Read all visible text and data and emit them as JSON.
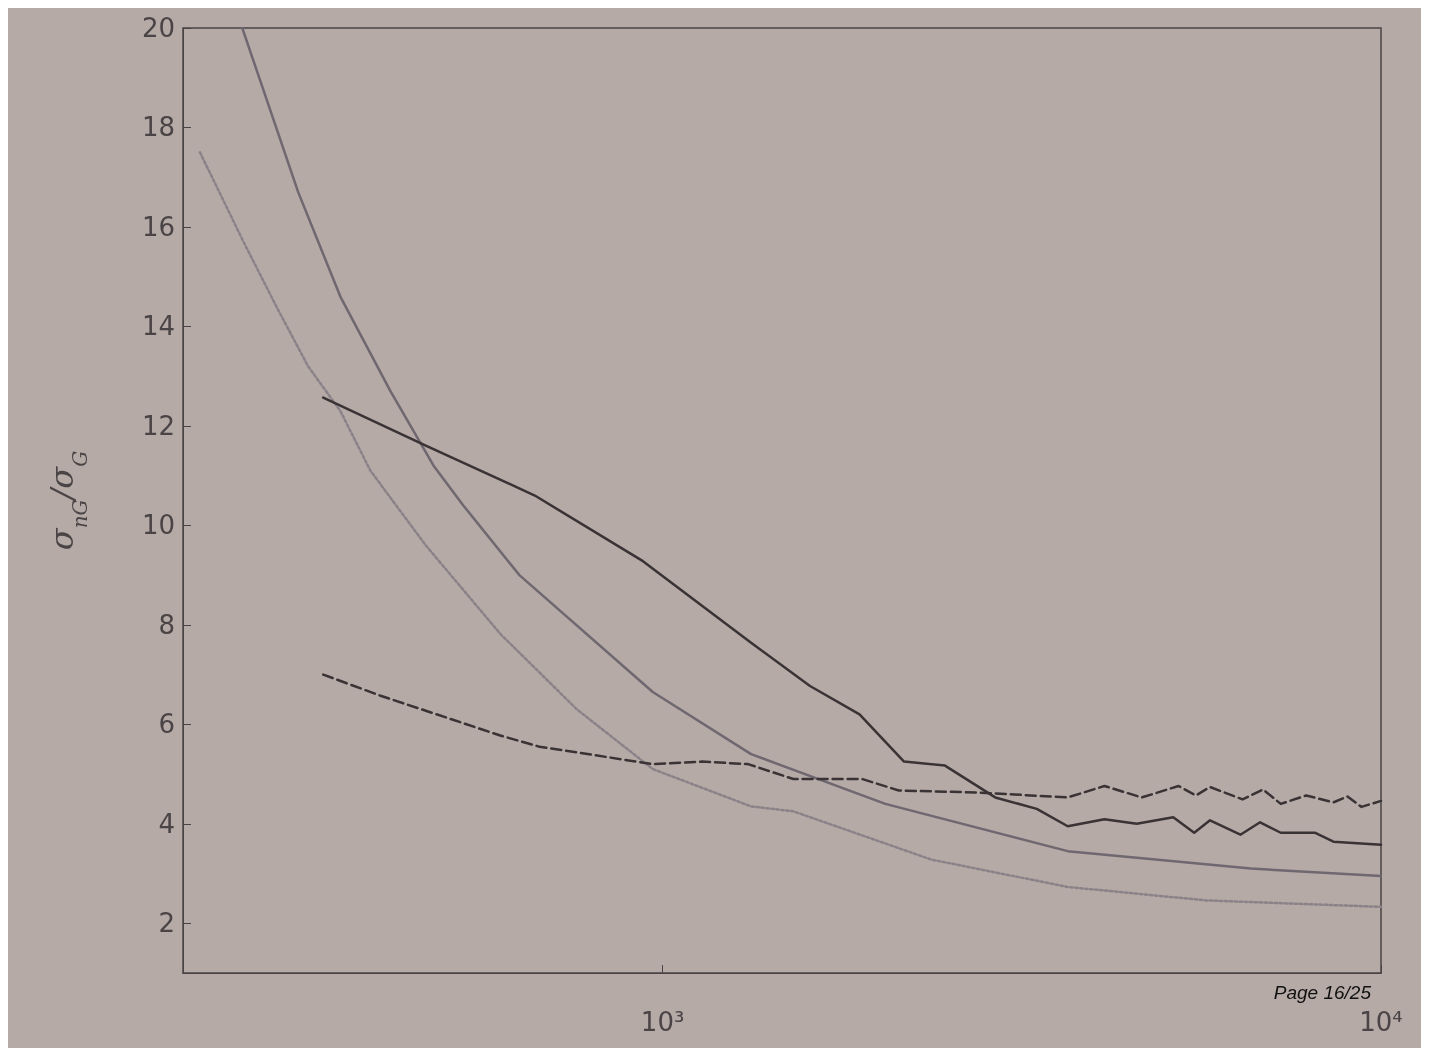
{
  "chart_data": {
    "type": "line",
    "ylabel": "σ$_{nG}$/σ$_{G}$",
    "log": "x",
    "xlim": [
      215,
      10000
    ],
    "xticks": [
      {
        "value": 1000,
        "label": "10³"
      },
      {
        "value": 10000,
        "label": "10⁴"
      }
    ],
    "ylim": [
      1,
      20
    ],
    "yticks": [
      2,
      4,
      6,
      8,
      10,
      12,
      14,
      16,
      18,
      20
    ],
    "grid": false,
    "marker": "none",
    "annotations": [
      "Page 16/25"
    ],
    "series": [
      {
        "color": "#6f6870",
        "line_style": "solid",
        "x": [
          260,
          311,
          356,
          418,
          480,
          528,
          632,
          969,
          1328,
          2042,
          3664,
          6590,
          10000
        ],
        "values": [
          20,
          16.7,
          14.6,
          12.7,
          11.2,
          10.4,
          9.0,
          6.65,
          5.4,
          4.4,
          3.45,
          3.1,
          2.95
        ]
      },
      {
        "color": "#8a8288",
        "line_style": "dotted",
        "x": [
          227,
          260,
          290,
          321,
          356,
          392,
          468,
          596,
          760,
          969,
          1328,
          1521,
          2367,
          3664,
          5701,
          10000
        ],
        "values": [
          17.5,
          15.75,
          14.4,
          13.2,
          12.3,
          11.1,
          9.6,
          7.8,
          6.3,
          5.1,
          4.35,
          4.25,
          3.28,
          2.73,
          2.46,
          2.33
        ]
      },
      {
        "color": "#3a3335",
        "line_style": "solid",
        "x": [
          337,
          469,
          664,
          939,
          1328,
          1604,
          1880,
          2168,
          2472,
          2904,
          3318,
          3664,
          4121,
          4571,
          5138,
          5495,
          5781,
          6372,
          6787,
          7252,
          8088,
          8586,
          10000
        ],
        "values": [
          12.57,
          11.6,
          10.6,
          9.28,
          7.64,
          6.77,
          6.2,
          5.25,
          5.17,
          4.53,
          4.3,
          3.95,
          4.09,
          4.0,
          4.13,
          3.82,
          4.07,
          3.78,
          4.03,
          3.82,
          3.82,
          3.64,
          3.58
        ]
      },
      {
        "color": "#3a3335",
        "line_style": "dashed",
        "x": [
          337,
          404,
          596,
          674,
          969,
          1135,
          1315,
          1521,
          1897,
          2132,
          2735,
          3664,
          4121,
          4645,
          5228,
          5525,
          5781,
          6417,
          6853,
          7252,
          7870,
          8586,
          8976,
          9393,
          10000
        ],
        "values": [
          7.0,
          6.58,
          5.77,
          5.55,
          5.2,
          5.25,
          5.2,
          4.9,
          4.9,
          4.67,
          4.63,
          4.53,
          4.76,
          4.53,
          4.76,
          4.57,
          4.74,
          4.49,
          4.69,
          4.4,
          4.57,
          4.43,
          4.55,
          4.34,
          4.46
        ]
      }
    ]
  }
}
